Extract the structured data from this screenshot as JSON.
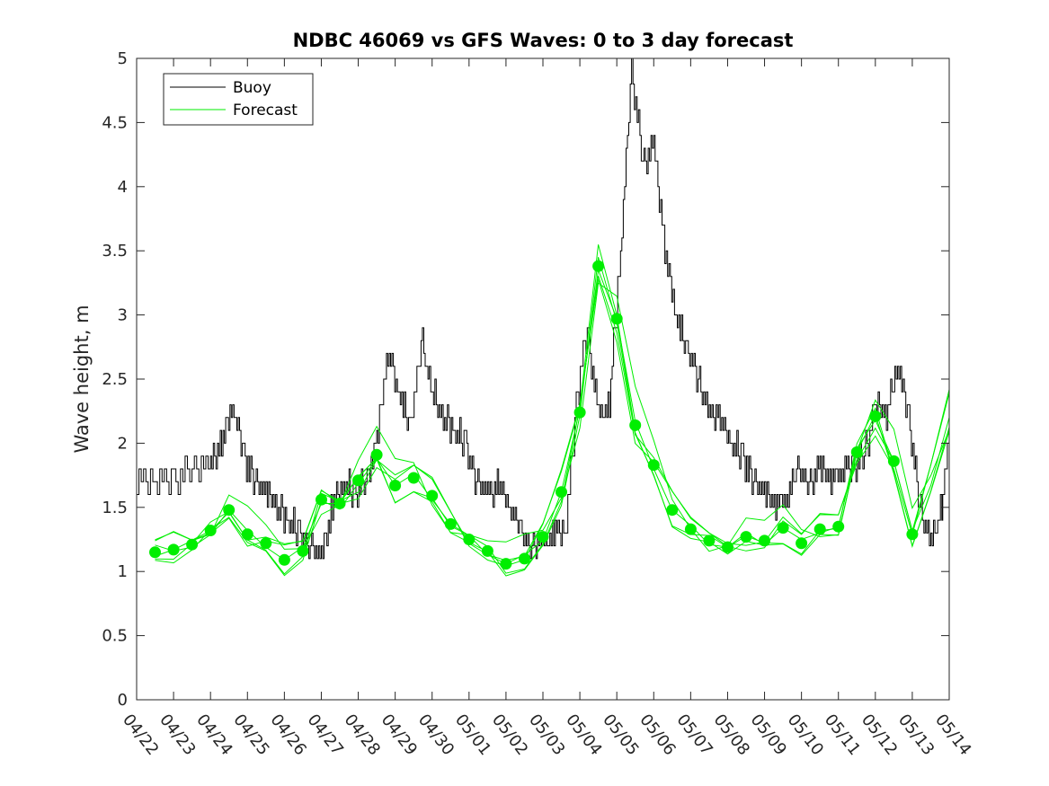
{
  "chart_data": {
    "type": "line",
    "title": "NDBC 46069 vs GFS Waves: 0 to 3 day forecast",
    "xlabel": "",
    "ylabel": "Wave height, m",
    "xlim": [
      "04/22",
      "05/14"
    ],
    "ylim": [
      0,
      5
    ],
    "yticks": [
      0,
      0.5,
      1,
      1.5,
      2,
      2.5,
      3,
      3.5,
      4,
      4.5,
      5
    ],
    "ytick_labels": [
      "0",
      "0.5",
      "1",
      "1.5",
      "2",
      "2.5",
      "3",
      "3.5",
      "4",
      "4.5",
      "5"
    ],
    "xtick_labels": [
      "04/22",
      "04/23",
      "04/24",
      "04/25",
      "04/26",
      "04/27",
      "04/28",
      "04/29",
      "04/30",
      "05/01",
      "05/02",
      "05/03",
      "05/04",
      "05/05",
      "05/06",
      "05/07",
      "05/08",
      "05/09",
      "05/10",
      "05/11",
      "05/12",
      "05/13",
      "05/14"
    ],
    "grid": false,
    "legend": {
      "position": "top-left",
      "entries": [
        "Buoy",
        "Forecast"
      ]
    },
    "colors": {
      "buoy": "#000000",
      "forecast": "#00ee00"
    },
    "series": [
      {
        "name": "Buoy",
        "x_days": [
          0,
          0.5,
          1,
          1.5,
          2,
          2.3,
          2.6,
          2.9,
          3.2,
          3.5,
          3.8,
          4.1,
          4.4,
          4.7,
          5,
          5.3,
          5.6,
          5.9,
          6.2,
          6.5,
          6.8,
          7.1,
          7.4,
          7.7,
          8,
          8.3,
          8.6,
          8.9,
          9.2,
          9.5,
          9.8,
          10.1,
          10.4,
          10.7,
          11,
          11.3,
          11.6,
          11.9,
          12.2,
          12.5,
          12.8,
          13.1,
          13.4,
          13.7,
          14,
          14.3,
          14.6,
          14.9,
          15.2,
          15.5,
          15.8,
          16.1,
          16.4,
          16.7,
          17,
          17.3,
          17.6,
          17.9,
          18.2,
          18.5,
          18.8,
          19.1,
          19.4,
          19.7,
          20,
          20.3,
          20.6,
          20.9,
          21.2,
          21.5,
          21.8,
          22
        ],
        "values": [
          1.7,
          1.7,
          1.7,
          1.8,
          1.8,
          2.0,
          2.3,
          1.9,
          1.7,
          1.6,
          1.5,
          1.4,
          1.3,
          1.2,
          1.1,
          1.5,
          1.7,
          1.6,
          1.7,
          2.0,
          2.7,
          2.4,
          2.1,
          2.8,
          2.4,
          2.2,
          2.1,
          2.0,
          1.7,
          1.6,
          1.7,
          1.5,
          1.3,
          1.2,
          1.2,
          1.3,
          1.3,
          2.3,
          2.9,
          2.2,
          2.3,
          3.5,
          4.9,
          4.2,
          4.3,
          3.5,
          3.0,
          2.7,
          2.5,
          2.2,
          2.2,
          2.0,
          1.9,
          1.7,
          1.6,
          1.5,
          1.6,
          1.8,
          1.7,
          1.8,
          1.7,
          1.8,
          1.8,
          1.9,
          2.3,
          2.2,
          2.6,
          2.2,
          1.5,
          1.2,
          1.5,
          2.1
        ]
      },
      {
        "name": "Forecast",
        "x_days": [
          0.5,
          1,
          1.5,
          2,
          2.5,
          3,
          3.5,
          4,
          4.5,
          5,
          5.5,
          6,
          6.5,
          7,
          7.5,
          8,
          8.5,
          9,
          9.5,
          10,
          10.5,
          11,
          11.5,
          12,
          12.5,
          13,
          13.5,
          14,
          14.5,
          15,
          15.5,
          16,
          16.5,
          17,
          17.5,
          18,
          18.5,
          19,
          19.5,
          20,
          20.5,
          21,
          21.5,
          22
        ],
        "values": [
          1.15,
          1.17,
          1.21,
          1.32,
          1.48,
          1.29,
          1.22,
          1.09,
          1.16,
          1.56,
          1.53,
          1.71,
          1.91,
          1.67,
          1.73,
          1.59,
          1.37,
          1.25,
          1.16,
          1.06,
          1.1,
          1.27,
          1.62,
          2.24,
          3.38,
          2.97,
          2.14,
          1.83,
          1.48,
          1.33,
          1.24,
          1.19,
          1.27,
          1.24,
          1.34,
          1.22,
          1.33,
          1.35,
          1.93,
          2.21,
          1.86,
          1.29,
          1.7,
          2.2
        ]
      }
    ],
    "forecast_markers": {
      "x_days": [
        0.5,
        1,
        1.5,
        2,
        2.5,
        3,
        3.5,
        4,
        4.5,
        5,
        5.5,
        6,
        6.5,
        7,
        7.5,
        8,
        8.5,
        9,
        9.5,
        10,
        10.5,
        11,
        11.5,
        12,
        12.5,
        13,
        13.5,
        14,
        14.5,
        15,
        15.5,
        16,
        16.5,
        17,
        17.5,
        18,
        18.5,
        19,
        19.5,
        20,
        20.5,
        21
      ],
      "values": [
        1.15,
        1.17,
        1.21,
        1.32,
        1.48,
        1.29,
        1.22,
        1.09,
        1.16,
        1.56,
        1.53,
        1.71,
        1.91,
        1.67,
        1.73,
        1.59,
        1.37,
        1.25,
        1.16,
        1.06,
        1.1,
        1.27,
        1.62,
        2.24,
        3.38,
        2.97,
        2.14,
        1.83,
        1.48,
        1.33,
        1.24,
        1.19,
        1.27,
        1.24,
        1.34,
        1.22,
        1.33,
        1.35,
        1.93,
        2.21,
        1.86,
        1.29
      ]
    }
  }
}
